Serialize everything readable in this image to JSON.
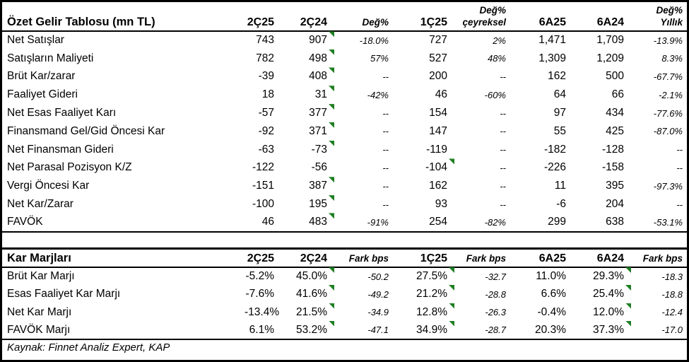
{
  "flag_color": "#1e7e22",
  "source_note": "Kaynak: Finnet Analiz Expert, KAP",
  "income_table": {
    "title": "Özet Gelir Tablosu (mn TL)",
    "columns": [
      {
        "label": "2Ç25",
        "type": "period"
      },
      {
        "label": "2Ç24",
        "type": "period"
      },
      {
        "label": "Değ%",
        "type": "pct"
      },
      {
        "label": "1Ç25",
        "type": "period"
      },
      {
        "label": "Değ%",
        "line2": "çeyreksel",
        "type": "pct"
      },
      {
        "label": "6A25",
        "type": "period"
      },
      {
        "label": "6A24",
        "type": "period"
      },
      {
        "label": "Değ%",
        "line2": "Yıllık",
        "type": "pct"
      }
    ],
    "italic_value_columns": [
      2,
      4,
      7
    ],
    "rows": [
      {
        "label": "Net Satışlar",
        "values": [
          "743",
          "907",
          "-18.0%",
          "727",
          "2%",
          "1,471",
          "1,709",
          "-13.9%"
        ],
        "flags": [
          1
        ]
      },
      {
        "label": "Satışların Maliyeti",
        "values": [
          "782",
          "498",
          "57%",
          "527",
          "48%",
          "1,309",
          "1,209",
          "8.3%"
        ],
        "flags": [
          1
        ]
      },
      {
        "label": "Brüt Kar/zarar",
        "values": [
          "-39",
          "408",
          "--",
          "200",
          "--",
          "162",
          "500",
          "-67.7%"
        ],
        "flags": [
          1
        ]
      },
      {
        "label": "Faaliyet Gideri",
        "values": [
          "18",
          "31",
          "-42%",
          "46",
          "-60%",
          "64",
          "66",
          "-2.1%"
        ],
        "flags": [
          1
        ]
      },
      {
        "label": "Net Esas Faaliyet Karı",
        "values": [
          "-57",
          "377",
          "--",
          "154",
          "--",
          "97",
          "434",
          "-77.6%"
        ],
        "flags": [
          1
        ]
      },
      {
        "label": "Finansmand Gel/Gid Öncesi Kar",
        "values": [
          "-92",
          "371",
          "--",
          "147",
          "--",
          "55",
          "425",
          "-87.0%"
        ],
        "flags": [
          1
        ]
      },
      {
        "label": "Net Finansman Gideri",
        "values": [
          "-63",
          "-73",
          "--",
          "-119",
          "--",
          "-182",
          "-128",
          "--"
        ],
        "flags": [
          1
        ]
      },
      {
        "label": "Net Parasal Pozisyon K/Z",
        "values": [
          "-122",
          "-56",
          "--",
          "-104",
          "--",
          "-226",
          "-158",
          "--"
        ],
        "flags": [
          3
        ]
      },
      {
        "label": "Vergi Öncesi Kar",
        "values": [
          "-151",
          "387",
          "--",
          "162",
          "--",
          "11",
          "395",
          "-97.3%"
        ],
        "flags": [
          1
        ]
      },
      {
        "label": "Net Kar/Zarar",
        "values": [
          "-100",
          "195",
          "--",
          "93",
          "--",
          "-6",
          "204",
          "--"
        ],
        "flags": [
          1
        ]
      },
      {
        "label": "FAVÖK",
        "values": [
          "46",
          "483",
          "-91%",
          "254",
          "-82%",
          "299",
          "638",
          "-53.1%"
        ],
        "flags": [
          1
        ]
      }
    ]
  },
  "margins_table": {
    "title": "Kar Marjları",
    "columns": [
      {
        "label": "2Ç25",
        "type": "period"
      },
      {
        "label": "2Ç24",
        "type": "period"
      },
      {
        "label": "Fark bps",
        "type": "pct"
      },
      {
        "label": "1Ç25",
        "type": "period"
      },
      {
        "label": "Fark bps",
        "type": "pct"
      },
      {
        "label": "6A25",
        "type": "period"
      },
      {
        "label": "6A24",
        "type": "period"
      },
      {
        "label": "Fark bps",
        "type": "pct"
      }
    ],
    "italic_value_columns": [
      2,
      4,
      7
    ],
    "rows": [
      {
        "label": "Brüt Kar Marjı",
        "values": [
          "-5.2%",
          "45.0%",
          "-50.2",
          "27.5%",
          "-32.7",
          "11.0%",
          "29.3%",
          "-18.3"
        ],
        "flags": [
          1,
          3,
          6
        ]
      },
      {
        "label": "Esas Faaliyet Kar Marjı",
        "values": [
          "-7.6%",
          "41.6%",
          "-49.2",
          "21.2%",
          "-28.8",
          "6.6%",
          "25.4%",
          "-18.8"
        ],
        "flags": [
          1,
          3,
          6
        ]
      },
      {
        "label": "Net Kar Marjı",
        "values": [
          "-13.4%",
          "21.5%",
          "-34.9",
          "12.8%",
          "-26.3",
          "-0.4%",
          "12.0%",
          "-12.4"
        ],
        "flags": [
          1,
          3,
          6
        ]
      },
      {
        "label": "FAVÖK Marjı",
        "values": [
          "6.1%",
          "53.2%",
          "-47.1",
          "34.9%",
          "-28.7",
          "20.3%",
          "37.3%",
          "-17.0"
        ],
        "flags": [
          1,
          3,
          6
        ]
      }
    ]
  }
}
